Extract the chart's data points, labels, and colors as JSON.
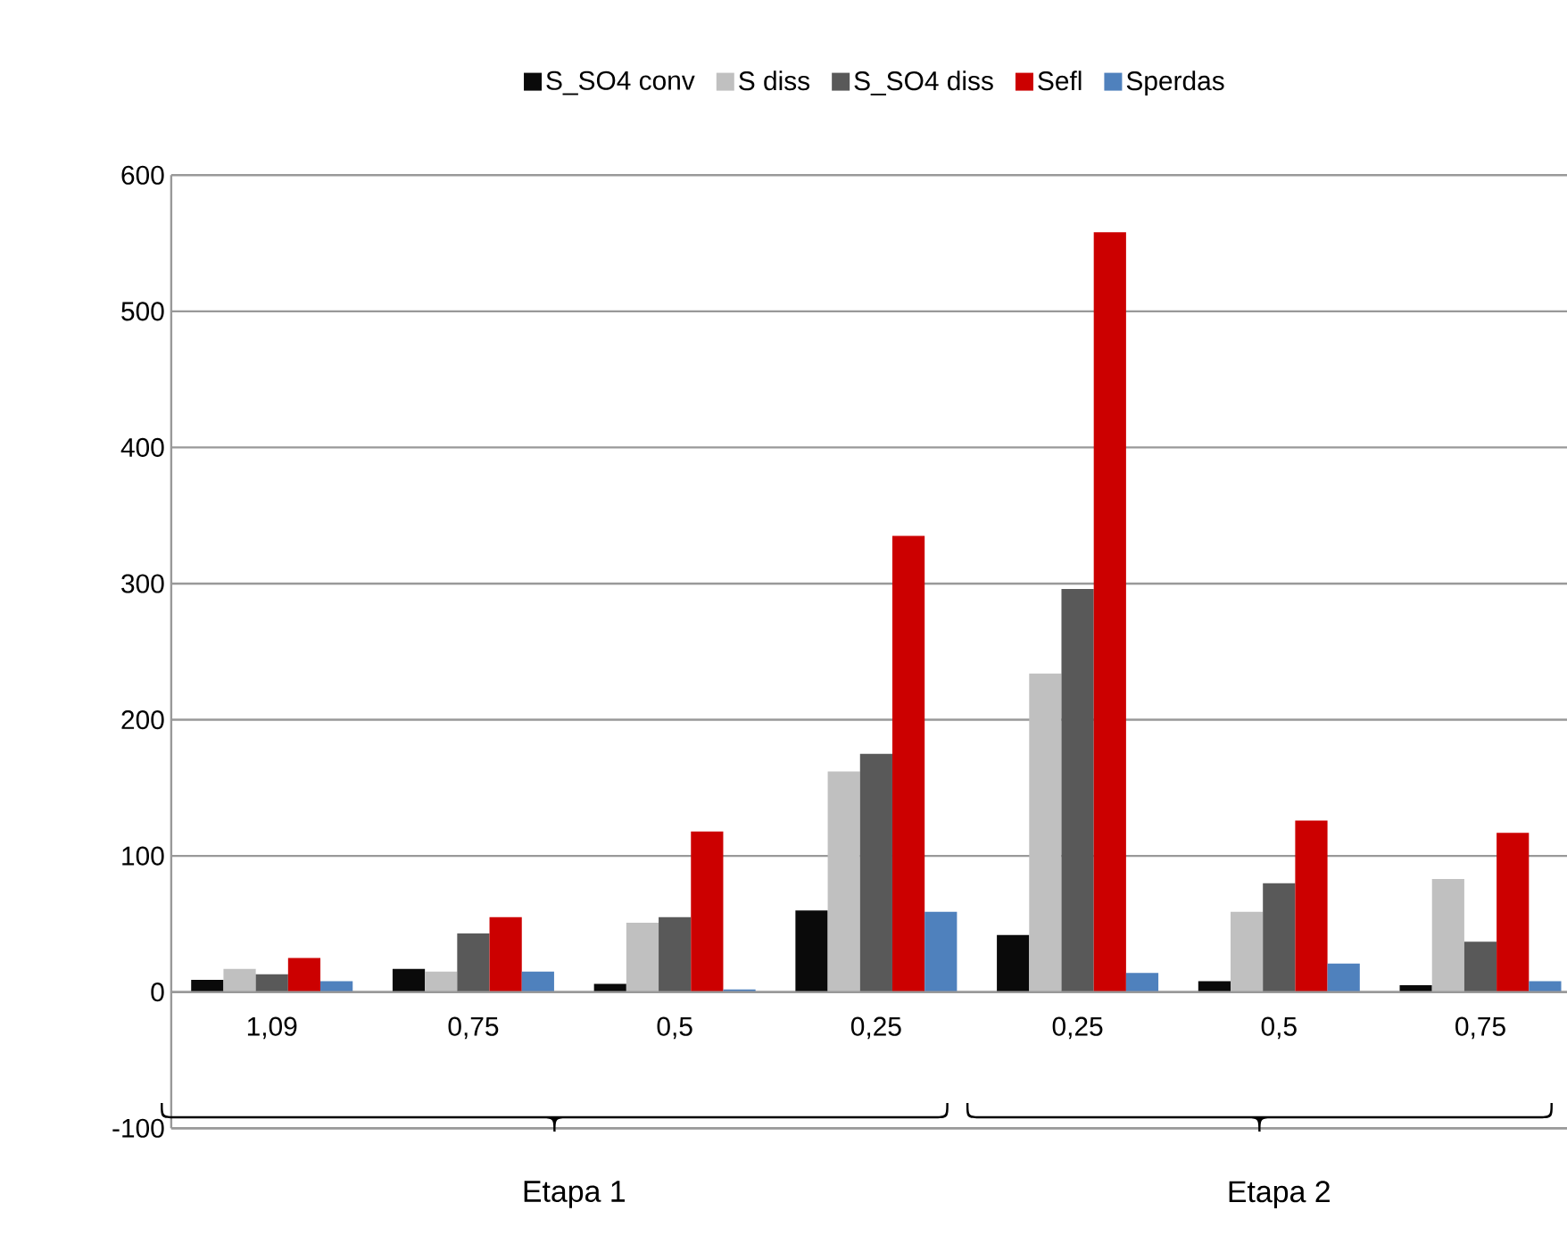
{
  "chart_data": {
    "type": "bar",
    "categories": [
      "1,09",
      "0,75",
      "0,5",
      "0,25",
      "0,25",
      "0,5",
      "0,75"
    ],
    "series": [
      {
        "name": "S_SO4 conv",
        "color": "#0a0a0a",
        "values": [
          9,
          17,
          6,
          60,
          42,
          8,
          5
        ]
      },
      {
        "name": "S diss",
        "color": "#c0c0c0",
        "values": [
          17,
          15,
          51,
          162,
          234,
          59,
          83
        ]
      },
      {
        "name": "S_SO4 diss",
        "color": "#595959",
        "values": [
          13,
          43,
          55,
          175,
          296,
          80,
          37
        ]
      },
      {
        "name": "Sefl",
        "color": "#cc0000",
        "values": [
          25,
          55,
          118,
          335,
          558,
          126,
          117
        ]
      },
      {
        "name": "Sperdas",
        "color": "#4f81bd",
        "values": [
          8,
          15,
          2,
          59,
          14,
          21,
          8
        ]
      }
    ],
    "ylim": [
      -100,
      600
    ],
    "yticks": [
      -100,
      0,
      100,
      200,
      300,
      400,
      500,
      600
    ],
    "grid": "y",
    "legend": "top",
    "annotations": [
      "Etapa 1",
      "Etapa 2"
    ]
  }
}
